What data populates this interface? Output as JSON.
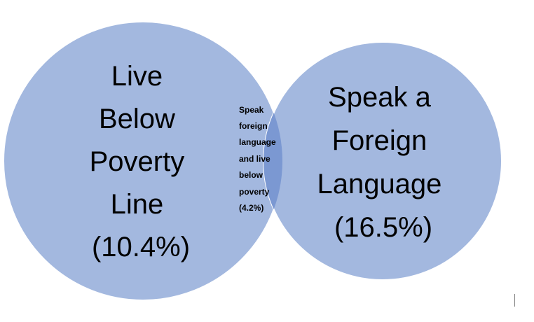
{
  "venn": {
    "left_circle": {
      "lines": [
        "Live",
        "Below",
        "Poverty",
        "Line",
        "(10.4%)"
      ],
      "percent": 10.4
    },
    "right_circle": {
      "lines": [
        "Speak a",
        "Foreign",
        "Language",
        "(16.5%)"
      ],
      "percent": 16.5
    },
    "overlap": {
      "lines": [
        "Speak",
        "foreign",
        "language",
        "and live",
        "below",
        "poverty",
        "(4.2%)"
      ],
      "percent": 4.2
    },
    "colors": {
      "circle_fill": "#a3b8df",
      "overlap_fill": "#7b98d2",
      "circle_stroke": "#ffffff"
    }
  }
}
